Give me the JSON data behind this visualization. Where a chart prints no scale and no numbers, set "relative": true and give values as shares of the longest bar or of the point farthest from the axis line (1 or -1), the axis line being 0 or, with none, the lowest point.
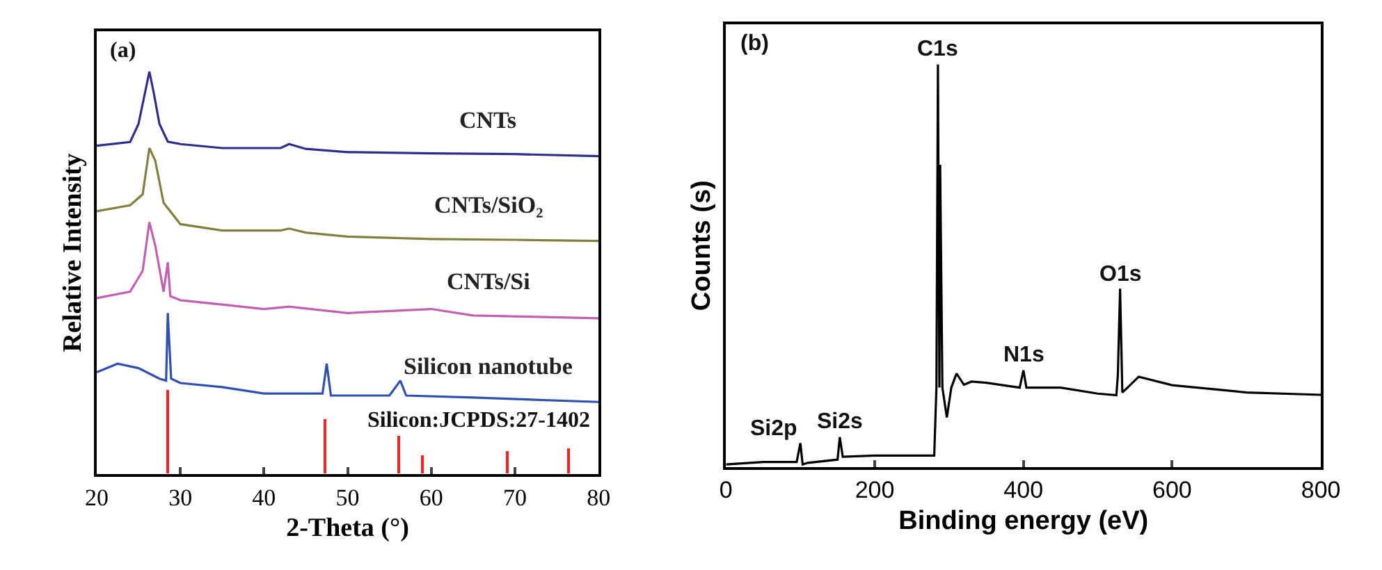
{
  "chart_data": [
    {
      "type": "line",
      "relative": true,
      "xlabel": "2-Theta (°)",
      "ylabel": "Relative Intensity",
      "xlim": [
        20,
        80
      ],
      "xticks": [
        20,
        30,
        40,
        50,
        60,
        70,
        80
      ],
      "tick_labels": "x",
      "legend": false,
      "marker": "none",
      "annotations": [
        "(a)",
        "Silicon:JCPDS:27-1402"
      ],
      "series": [
        {
          "name": "CNTs",
          "color": "#2e2e8a",
          "x": [
            20,
            24,
            25,
            25.8,
            26.3,
            26.8,
            27.5,
            28.5,
            30,
            35,
            42,
            43,
            45,
            50,
            60,
            70,
            80
          ],
          "values": [
            0.816,
            0.825,
            0.87,
            0.95,
            1.0,
            0.95,
            0.87,
            0.826,
            0.82,
            0.81,
            0.81,
            0.82,
            0.808,
            0.8,
            0.797,
            0.795,
            0.79
          ]
        },
        {
          "name": "CNTs/SiO₂",
          "color": "#808040",
          "x": [
            20,
            24,
            25.5,
            26.3,
            27,
            28,
            30,
            35,
            42,
            43,
            45,
            50,
            60,
            70,
            80
          ],
          "values": [
            0.653,
            0.668,
            0.695,
            0.81,
            0.779,
            0.674,
            0.621,
            0.605,
            0.605,
            0.61,
            0.6,
            0.59,
            0.584,
            0.582,
            0.579
          ]
        },
        {
          "name": "CNTs/Si",
          "color": "#c060b0",
          "x": [
            20,
            24,
            25.5,
            26.3,
            27,
            28,
            28.5,
            28.8,
            30,
            35,
            40,
            43,
            50,
            60,
            65,
            80
          ],
          "values": [
            0.437,
            0.453,
            0.505,
            0.626,
            0.568,
            0.453,
            0.526,
            0.442,
            0.432,
            0.421,
            0.41,
            0.416,
            0.4,
            0.41,
            0.394,
            0.387
          ]
        },
        {
          "name": "Silicon nanotube",
          "color": "#3050b0",
          "x": [
            20,
            22.5,
            25,
            27.5,
            28.3,
            28.5,
            28.9,
            30,
            35,
            40,
            47,
            47.5,
            48,
            55,
            56.3,
            57,
            65,
            80
          ],
          "values": [
            0.253,
            0.274,
            0.263,
            0.237,
            0.232,
            0.4,
            0.237,
            0.226,
            0.216,
            0.2,
            0.2,
            0.274,
            0.195,
            0.195,
            0.232,
            0.195,
            0.19,
            0.179
          ]
        },
        {
          "type": "bar",
          "color": "#ff2020",
          "x": [
            28.5,
            47.3,
            56.1,
            59,
            69.1,
            76.4
          ],
          "values": [
            0.21,
            0.137,
            0.095,
            0.047,
            0.058,
            0.063
          ]
        }
      ]
    },
    {
      "type": "line",
      "relative": true,
      "xlabel": "Binding energy (eV)",
      "ylabel": "Counts (s)",
      "xlim": [
        0,
        800
      ],
      "xticks": [
        0,
        200,
        400,
        600,
        800
      ],
      "tick_labels": "x",
      "legend": false,
      "marker": "none",
      "annotations": [
        "(b)",
        {
          "text": "C1s",
          "x": 285,
          "y": 1.0
        },
        {
          "text": "Si2p",
          "x": 100,
          "y": 0.059
        },
        {
          "text": "Si2s",
          "x": 153,
          "y": 0.074
        },
        {
          "text": "N1s",
          "x": 400,
          "y": 0.24
        },
        {
          "text": "O1s",
          "x": 530,
          "y": 0.443
        }
      ],
      "series": [
        {
          "color": "#000000",
          "x": [
            0,
            50,
            95,
            100,
            103,
            110,
            150,
            153,
            157,
            200,
            280,
            283,
            285,
            287,
            288,
            291,
            297,
            303,
            310,
            320,
            330,
            350,
            395,
            400,
            404,
            450,
            500,
            525,
            527,
            530,
            533,
            540,
            555,
            600,
            700,
            800
          ],
          "values": [
            0.006,
            0.012,
            0.012,
            0.059,
            0.006,
            0.01,
            0.018,
            0.074,
            0.025,
            0.028,
            0.028,
            0.197,
            1.0,
            0.197,
            0.751,
            0.197,
            0.123,
            0.197,
            0.232,
            0.204,
            0.212,
            0.209,
            0.197,
            0.24,
            0.197,
            0.197,
            0.182,
            0.178,
            0.228,
            0.443,
            0.185,
            0.197,
            0.224,
            0.203,
            0.185,
            0.179
          ]
        }
      ]
    }
  ]
}
